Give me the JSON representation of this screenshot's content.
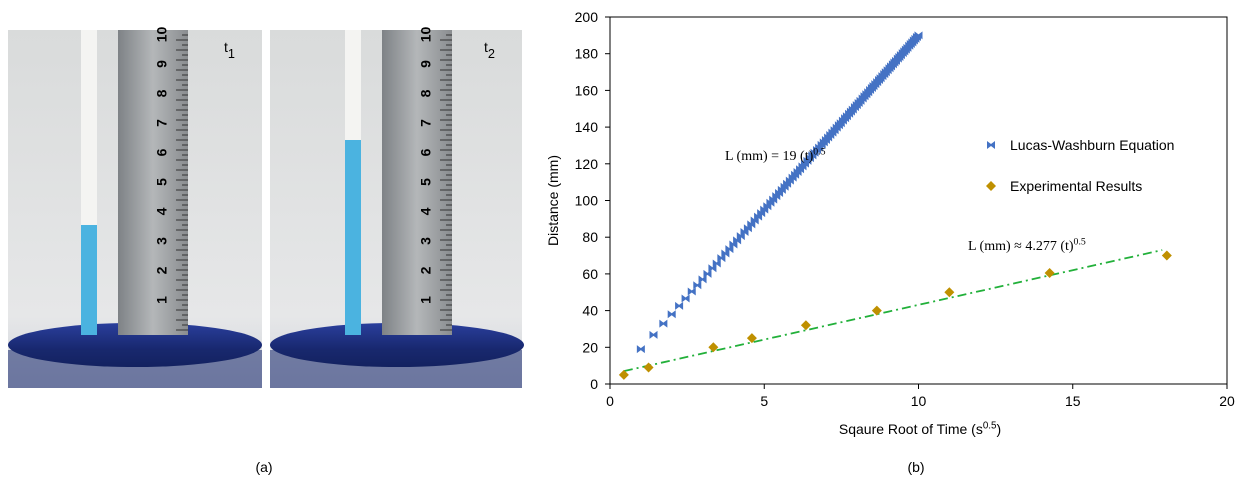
{
  "photos": [
    {
      "label": "t",
      "sub": "1"
    },
    {
      "label": "t",
      "sub": "2"
    }
  ],
  "ruler_numbers": [
    "1",
    "2",
    "3",
    "4",
    "5",
    "6",
    "7",
    "8",
    "9",
    "10"
  ],
  "panel_labels": [
    "(a)",
    "(b)"
  ],
  "chart_data": {
    "type": "scatter",
    "xlabel": {
      "text": "Sqaure Root of Time (s",
      "sup": "0.5",
      "tail": ")"
    },
    "ylabel": "Distance (mm)",
    "xlim": [
      0,
      20
    ],
    "xticks": [
      0,
      5,
      10,
      15,
      20
    ],
    "ylim": [
      0,
      200
    ],
    "yticks": [
      0,
      20,
      40,
      60,
      80,
      100,
      120,
      140,
      160,
      180,
      200
    ],
    "series": [
      {
        "name": "Lucas-Washburn Equation",
        "color": "#4472c4",
        "marker": "bowtie",
        "x": [
          1.0,
          1.41,
          1.73,
          2.0,
          2.24,
          2.45,
          2.65,
          2.83,
          3.0,
          3.16,
          3.32,
          3.46,
          3.61,
          3.74,
          3.87,
          4.0,
          4.12,
          4.24,
          4.36,
          4.47,
          4.58,
          4.69,
          4.8,
          4.9,
          5.0,
          5.1,
          5.2,
          5.29,
          5.39,
          5.48,
          5.57,
          5.66,
          5.74,
          5.83,
          5.92,
          6.0,
          6.08,
          6.16,
          6.24,
          6.32,
          6.4,
          6.48,
          6.56,
          6.63,
          6.71,
          6.78,
          6.86,
          6.93,
          7.0,
          7.07,
          7.14,
          7.21,
          7.28,
          7.35,
          7.42,
          7.48,
          7.55,
          7.62,
          7.68,
          7.75,
          7.81,
          7.87,
          7.94,
          8.0,
          8.06,
          8.12,
          8.19,
          8.25,
          8.31,
          8.37,
          8.43,
          8.49,
          8.54,
          8.6,
          8.66,
          8.72,
          8.77,
          8.83,
          8.89,
          8.94,
          9.0,
          9.06,
          9.11,
          9.17,
          9.22,
          9.27,
          9.33,
          9.38,
          9.43,
          9.49,
          9.54,
          9.59,
          9.64,
          9.7,
          9.75,
          9.8,
          9.85,
          9.9,
          9.95,
          10.0
        ],
        "values": [
          19.0,
          26.8,
          32.9,
          38.0,
          42.6,
          46.6,
          50.4,
          53.8,
          57.0,
          60.0,
          63.1,
          65.7,
          68.6,
          71.1,
          73.5,
          76.0,
          78.3,
          80.6,
          82.8,
          84.9,
          87.0,
          89.1,
          91.2,
          93.1,
          95.0,
          96.9,
          98.8,
          100.5,
          102.4,
          104.1,
          105.8,
          107.5,
          109.1,
          110.8,
          112.5,
          114.0,
          115.5,
          117.0,
          118.6,
          120.1,
          121.6,
          123.1,
          124.6,
          126.0,
          127.5,
          128.8,
          130.3,
          131.7,
          133.0,
          134.3,
          135.7,
          137.0,
          138.3,
          139.7,
          141.0,
          142.1,
          143.5,
          144.8,
          145.9,
          147.3,
          148.4,
          149.5,
          150.9,
          152.0,
          153.1,
          154.3,
          155.6,
          156.8,
          157.9,
          159.0,
          160.2,
          161.3,
          162.3,
          163.4,
          164.5,
          165.7,
          166.6,
          167.8,
          168.9,
          169.9,
          171.0,
          172.1,
          173.1,
          174.2,
          175.2,
          176.1,
          177.3,
          178.2,
          179.2,
          180.3,
          181.3,
          182.2,
          183.2,
          184.3,
          185.3,
          186.2,
          187.2,
          188.1,
          189.1,
          190.0
        ]
      },
      {
        "name": "Experimental Results",
        "color": "#bf9000",
        "marker": "diamond",
        "x": [
          0.45,
          1.25,
          3.35,
          4.6,
          6.35,
          8.65,
          11,
          14.25,
          18.05
        ],
        "values": [
          5,
          9,
          20,
          25,
          32,
          40,
          50,
          60.5,
          70
        ]
      }
    ],
    "trendline": {
      "color": "#22b03a",
      "x": [
        0.45,
        17.9
      ],
      "values": [
        7,
        73
      ]
    },
    "annotations": [
      {
        "text": "L (mm) = 19 (t)",
        "sup": "0.5"
      },
      {
        "text": "L (mm) ≈ 4.277 (t)",
        "sup": "0.5"
      }
    ]
  }
}
